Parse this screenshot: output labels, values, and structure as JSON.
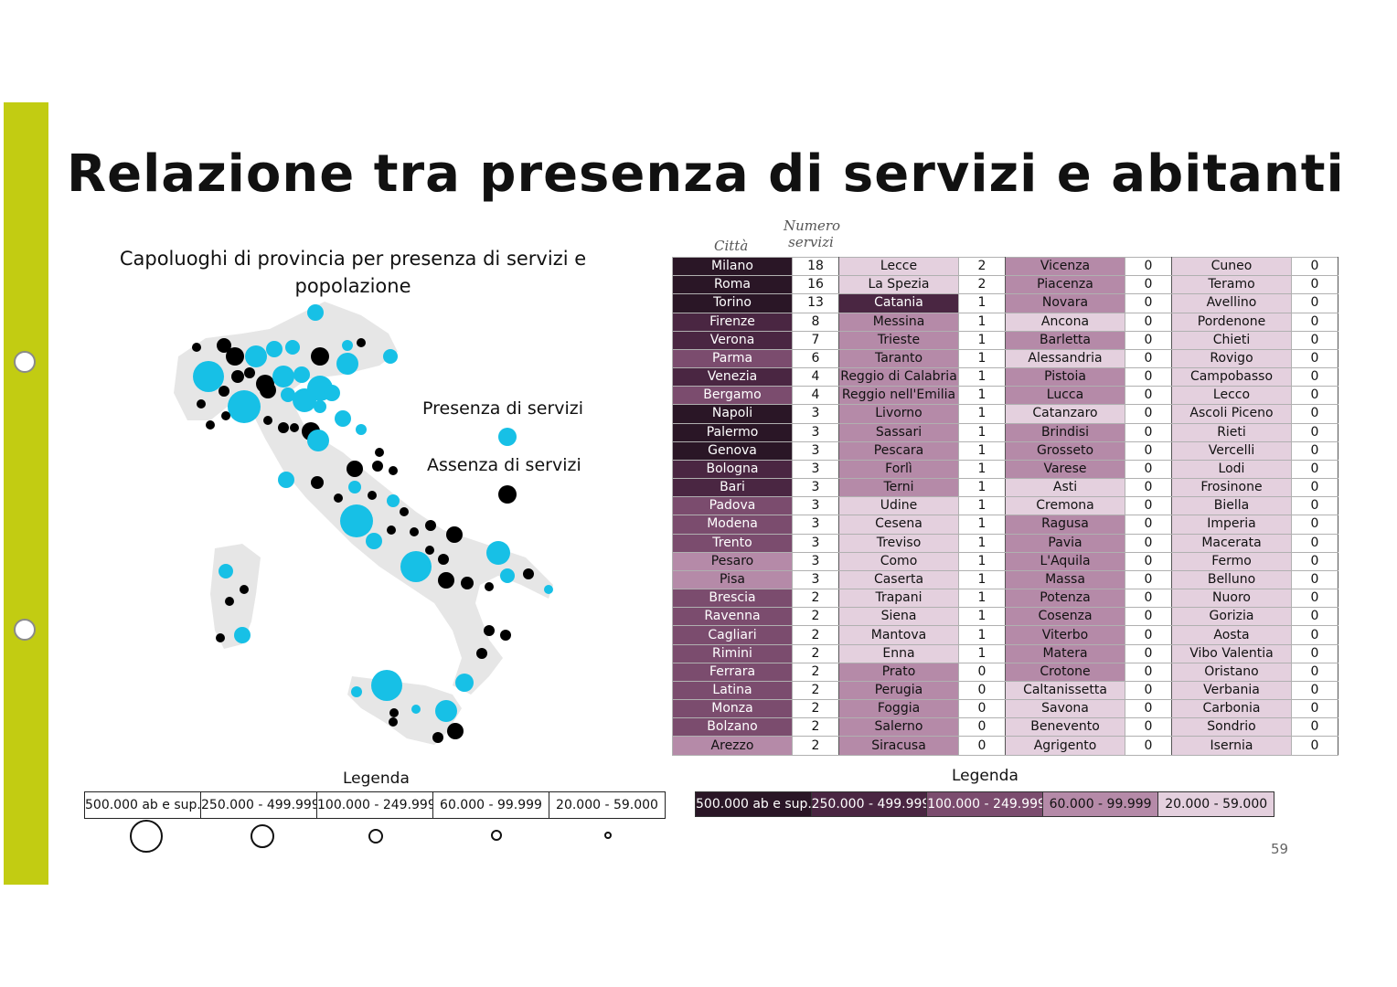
{
  "title": "Relazione tra presenza di servizi e abitanti",
  "map_title": "Capoluoghi di provincia per presenza di servizi e popolazione",
  "map_legend": {
    "presence_label": "Presenza di servizi",
    "absence_label": "Assenza di servizi",
    "presence_color": "#17c0e6",
    "absence_color": "#000000"
  },
  "table_headers": {
    "city": "Città",
    "count": "Numero servizi"
  },
  "table": [
    [
      [
        "Milano",
        "18",
        0
      ],
      [
        "Lecce",
        "2",
        4
      ],
      [
        "Vicenza",
        "0",
        3
      ],
      [
        "Cuneo",
        "0",
        4
      ]
    ],
    [
      [
        "Roma",
        "16",
        0
      ],
      [
        "La Spezia",
        "2",
        4
      ],
      [
        "Piacenza",
        "0",
        3
      ],
      [
        "Teramo",
        "0",
        4
      ]
    ],
    [
      [
        "Torino",
        "13",
        0
      ],
      [
        "Catania",
        "1",
        1
      ],
      [
        "Novara",
        "0",
        3
      ],
      [
        "Avellino",
        "0",
        4
      ]
    ],
    [
      [
        "Firenze",
        "8",
        1
      ],
      [
        "Messina",
        "1",
        3
      ],
      [
        "Ancona",
        "0",
        4
      ],
      [
        "Pordenone",
        "0",
        4
      ]
    ],
    [
      [
        "Verona",
        "7",
        1
      ],
      [
        "Trieste",
        "1",
        3
      ],
      [
        "Barletta",
        "0",
        3
      ],
      [
        "Chieti",
        "0",
        4
      ]
    ],
    [
      [
        "Parma",
        "6",
        2
      ],
      [
        "Taranto",
        "1",
        3
      ],
      [
        "Alessandria",
        "0",
        4
      ],
      [
        "Rovigo",
        "0",
        4
      ]
    ],
    [
      [
        "Venezia",
        "4",
        1
      ],
      [
        "Reggio di Calabria",
        "1",
        3
      ],
      [
        "Pistoia",
        "0",
        3
      ],
      [
        "Campobasso",
        "0",
        4
      ]
    ],
    [
      [
        "Bergamo",
        "4",
        2
      ],
      [
        "Reggio nell'Emilia",
        "1",
        3
      ],
      [
        "Lucca",
        "0",
        3
      ],
      [
        "Lecco",
        "0",
        4
      ]
    ],
    [
      [
        "Napoli",
        "3",
        0
      ],
      [
        "Livorno",
        "1",
        3
      ],
      [
        "Catanzaro",
        "0",
        4
      ],
      [
        "Ascoli Piceno",
        "0",
        4
      ]
    ],
    [
      [
        "Palermo",
        "3",
        0
      ],
      [
        "Sassari",
        "1",
        3
      ],
      [
        "Brindisi",
        "0",
        3
      ],
      [
        "Rieti",
        "0",
        4
      ]
    ],
    [
      [
        "Genova",
        "3",
        0
      ],
      [
        "Pescara",
        "1",
        3
      ],
      [
        "Grosseto",
        "0",
        3
      ],
      [
        "Vercelli",
        "0",
        4
      ]
    ],
    [
      [
        "Bologna",
        "3",
        1
      ],
      [
        "Forlì",
        "1",
        3
      ],
      [
        "Varese",
        "0",
        3
      ],
      [
        "Lodi",
        "0",
        4
      ]
    ],
    [
      [
        "Bari",
        "3",
        1
      ],
      [
        "Terni",
        "1",
        3
      ],
      [
        "Asti",
        "0",
        4
      ],
      [
        "Frosinone",
        "0",
        4
      ]
    ],
    [
      [
        "Padova",
        "3",
        2
      ],
      [
        "Udine",
        "1",
        4
      ],
      [
        "Cremona",
        "0",
        4
      ],
      [
        "Biella",
        "0",
        4
      ]
    ],
    [
      [
        "Modena",
        "3",
        2
      ],
      [
        "Cesena",
        "1",
        4
      ],
      [
        "Ragusa",
        "0",
        3
      ],
      [
        "Imperia",
        "0",
        4
      ]
    ],
    [
      [
        "Trento",
        "3",
        2
      ],
      [
        "Treviso",
        "1",
        4
      ],
      [
        "Pavia",
        "0",
        3
      ],
      [
        "Macerata",
        "0",
        4
      ]
    ],
    [
      [
        "Pesaro",
        "3",
        3
      ],
      [
        "Como",
        "1",
        4
      ],
      [
        "L'Aquila",
        "0",
        3
      ],
      [
        "Fermo",
        "0",
        4
      ]
    ],
    [
      [
        "Pisa",
        "3",
        3
      ],
      [
        "Caserta",
        "1",
        4
      ],
      [
        "Massa",
        "0",
        3
      ],
      [
        "Belluno",
        "0",
        4
      ]
    ],
    [
      [
        "Brescia",
        "2",
        2
      ],
      [
        "Trapani",
        "1",
        4
      ],
      [
        "Potenza",
        "0",
        3
      ],
      [
        "Nuoro",
        "0",
        4
      ]
    ],
    [
      [
        "Ravenna",
        "2",
        2
      ],
      [
        "Siena",
        "1",
        4
      ],
      [
        "Cosenza",
        "0",
        3
      ],
      [
        "Gorizia",
        "0",
        4
      ]
    ],
    [
      [
        "Cagliari",
        "2",
        2
      ],
      [
        "Mantova",
        "1",
        4
      ],
      [
        "Viterbo",
        "0",
        3
      ],
      [
        "Aosta",
        "0",
        4
      ]
    ],
    [
      [
        "Rimini",
        "2",
        2
      ],
      [
        "Enna",
        "1",
        4
      ],
      [
        "Matera",
        "0",
        3
      ],
      [
        "Vibo Valentia",
        "0",
        4
      ]
    ],
    [
      [
        "Ferrara",
        "2",
        2
      ],
      [
        "Prato",
        "0",
        3
      ],
      [
        "Crotone",
        "0",
        3
      ],
      [
        "Oristano",
        "0",
        4
      ]
    ],
    [
      [
        "Latina",
        "2",
        2
      ],
      [
        "Perugia",
        "0",
        3
      ],
      [
        "Caltanissetta",
        "0",
        4
      ],
      [
        "Verbania",
        "0",
        4
      ]
    ],
    [
      [
        "Monza",
        "2",
        2
      ],
      [
        "Foggia",
        "0",
        3
      ],
      [
        "Savona",
        "0",
        4
      ],
      [
        "Carbonia",
        "0",
        4
      ]
    ],
    [
      [
        "Bolzano",
        "2",
        2
      ],
      [
        "Salerno",
        "0",
        3
      ],
      [
        "Benevento",
        "0",
        4
      ],
      [
        "Sondrio",
        "0",
        4
      ]
    ],
    [
      [
        "Arezzo",
        "2",
        3
      ],
      [
        "Siracusa",
        "0",
        3
      ],
      [
        "Agrigento",
        "0",
        4
      ],
      [
        "Isernia",
        "0",
        4
      ]
    ]
  ],
  "legend_title_left": "Legenda",
  "legend_title_right": "Legenda",
  "legend_classes": [
    "500.000 ab e sup.",
    "250.000 - 499.999",
    "100.000 - 249.999",
    "60.000 - 99.999",
    "20.000 - 59.000"
  ],
  "legend_colors": [
    "#2a1626",
    "#4a2642",
    "#7b4c6e",
    "#b58aa8",
    "#e4d0de"
  ],
  "page_number": "59"
}
